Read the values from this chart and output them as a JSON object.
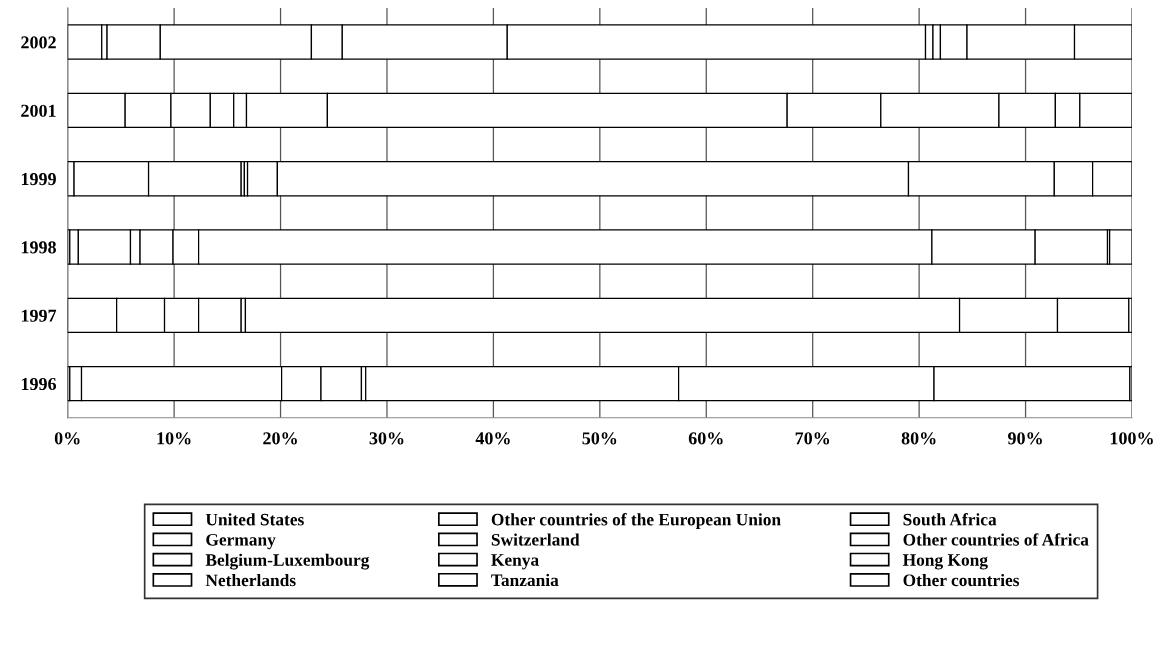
{
  "chart_data": {
    "type": "bar",
    "orientation": "horizontal",
    "stacked": true,
    "categories": [
      "2002",
      "2001",
      "1999",
      "1998",
      "1997",
      "1996"
    ],
    "series": [
      {
        "name": "United States",
        "color": "#ffffff",
        "values": [
          3.2,
          5.4,
          0.6,
          0.2,
          4.6,
          0.2
        ]
      },
      {
        "name": "Germany",
        "color": "#ffffff",
        "values": [
          0.5,
          4.3,
          7.0,
          0.8,
          4.5,
          1.1
        ]
      },
      {
        "name": "Belgium-Luxembourg",
        "color": "#ffffff",
        "values": [
          5.0,
          3.7,
          8.7,
          4.9,
          3.2,
          18.8
        ]
      },
      {
        "name": "Netherlands",
        "color": "#ffffff",
        "values": [
          14.2,
          2.2,
          0.3,
          0.9,
          4.0,
          3.7
        ]
      },
      {
        "name": "Other countries of the European Union",
        "color": "#ffffff",
        "values": [
          2.9,
          1.2,
          0.3,
          3.1,
          0.4,
          3.8
        ]
      },
      {
        "name": "Switzerland",
        "color": "#ffffff",
        "values": [
          15.5,
          7.6,
          2.8,
          2.4,
          null,
          0.4
        ]
      },
      {
        "name": "Kenya",
        "color": "#ffffff",
        "values": [
          39.3,
          43.2,
          59.3,
          68.9,
          67.1,
          29.4
        ]
      },
      {
        "name": "Tanzania",
        "color": "#ffffff",
        "values": [
          0.7,
          8.8,
          13.7,
          9.7,
          9.2,
          24.0
        ]
      },
      {
        "name": "South Africa",
        "color": "#ffffff",
        "values": [
          0.7,
          11.1,
          3.6,
          6.8,
          6.7,
          18.4
        ]
      },
      {
        "name": "Other countries of Africa",
        "color": "#ffffff",
        "values": [
          2.5,
          5.3,
          3.7,
          0.2,
          0.3,
          0.2
        ]
      },
      {
        "name": "Hong Kong",
        "color": "#ffffff",
        "values": [
          10.1,
          2.3,
          null,
          null,
          null,
          null
        ]
      },
      {
        "name": "Other countries",
        "color": "#ffffff",
        "values": [
          5.4,
          4.9,
          null,
          2.1,
          null,
          null
        ]
      }
    ],
    "xlim": [
      0,
      100
    ],
    "xticks": [
      {
        "value": 0,
        "label": "0%"
      },
      {
        "value": 10,
        "label": "10%"
      },
      {
        "value": 20,
        "label": "20%"
      },
      {
        "value": 30,
        "label": "30%"
      },
      {
        "value": 40,
        "label": "40%"
      },
      {
        "value": 50,
        "label": "50%"
      },
      {
        "value": 60,
        "label": "60%"
      },
      {
        "value": 70,
        "label": "70%"
      },
      {
        "value": 80,
        "label": "80%"
      },
      {
        "value": 90,
        "label": "90%"
      },
      {
        "value": 100,
        "label": "100%"
      }
    ],
    "grid": "x",
    "legend": "bottom"
  }
}
